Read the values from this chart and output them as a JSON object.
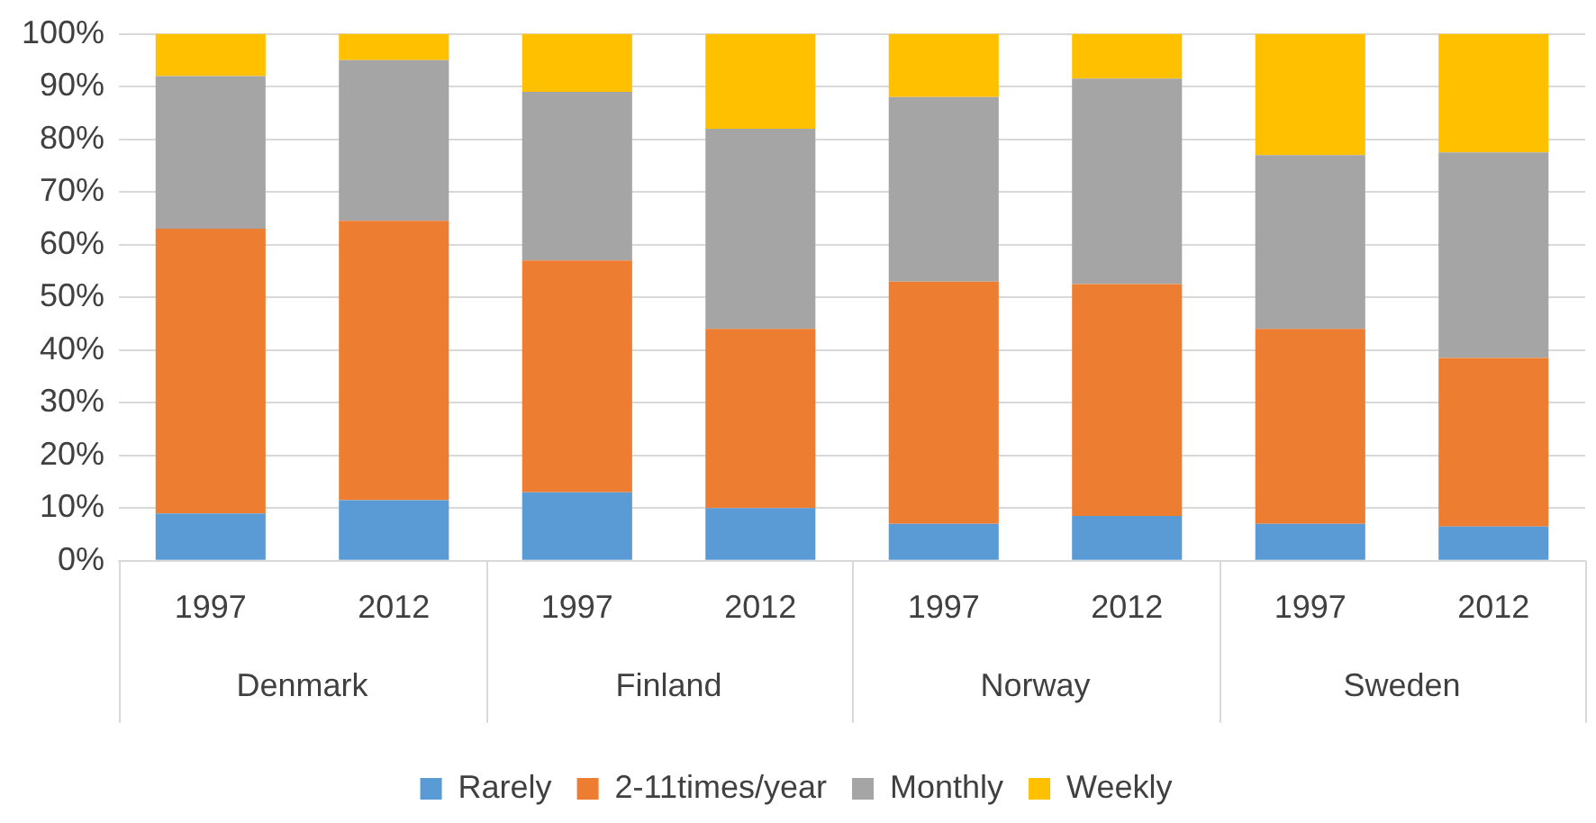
{
  "chart_data": {
    "type": "bar",
    "stacked": true,
    "categories": [
      "1997",
      "2012",
      "1997",
      "2012",
      "1997",
      "2012",
      "1997",
      "2012"
    ],
    "annotations": [
      "Denmark",
      "Finland",
      "Norway",
      "Sweden"
    ],
    "series": [
      {
        "name": "Rarely",
        "color": "#5b9bd5",
        "values": [
          9,
          11.5,
          13,
          10,
          7,
          8.5,
          7,
          6.5
        ]
      },
      {
        "name": "2-11times/year",
        "color": "#ed7d31",
        "values": [
          54,
          53,
          44,
          34,
          46,
          44,
          37,
          32
        ]
      },
      {
        "name": "Monthly",
        "color": "#a5a5a5",
        "values": [
          29,
          30.5,
          32,
          38,
          35,
          39,
          33,
          39
        ]
      },
      {
        "name": "Weekly",
        "color": "#ffc000",
        "values": [
          8,
          5,
          11,
          18,
          12,
          8.5,
          23,
          22.5
        ]
      }
    ],
    "ylim": [
      0,
      100
    ],
    "yticks": [
      {
        "value": 0,
        "label": "0%"
      },
      {
        "value": 10,
        "label": "10%"
      },
      {
        "value": 20,
        "label": "20%"
      },
      {
        "value": 30,
        "label": "30%"
      },
      {
        "value": 40,
        "label": "40%"
      },
      {
        "value": 50,
        "label": "50%"
      },
      {
        "value": 60,
        "label": "60%"
      },
      {
        "value": 70,
        "label": "70%"
      },
      {
        "value": 80,
        "label": "80%"
      },
      {
        "value": 90,
        "label": "90%"
      },
      {
        "value": 100,
        "label": "100%"
      }
    ],
    "grid": "y",
    "legend": "bottom"
  }
}
